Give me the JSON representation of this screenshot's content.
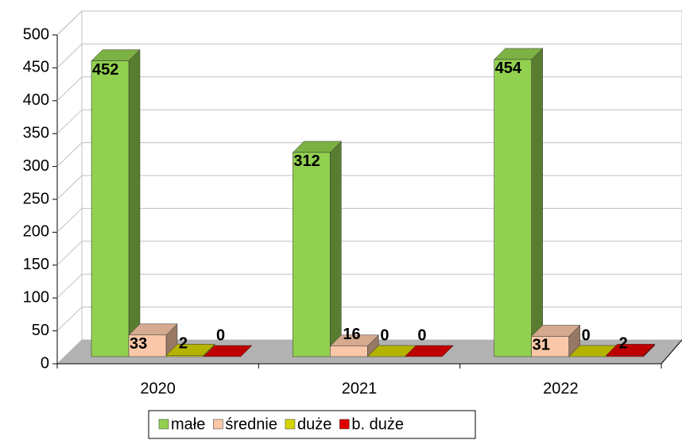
{
  "chart_data": {
    "type": "bar3d",
    "categories": [
      "2020",
      "2021",
      "2022"
    ],
    "series": [
      {
        "name": "małe",
        "color": "#92d050",
        "values": [
          452,
          312,
          454
        ]
      },
      {
        "name": "średnie",
        "color": "#fac8a8",
        "values": [
          33,
          16,
          31
        ]
      },
      {
        "name": "duże",
        "color": "#d4d400",
        "values": [
          2,
          0,
          0
        ]
      },
      {
        "name": "b. duże",
        "color": "#e00000",
        "values": [
          0,
          0,
          2
        ]
      }
    ],
    "ylim": [
      0,
      500
    ],
    "yticks": [
      0,
      50,
      100,
      150,
      200,
      250,
      300,
      350,
      400,
      450,
      500
    ],
    "grid": true,
    "legend": "bottom"
  }
}
